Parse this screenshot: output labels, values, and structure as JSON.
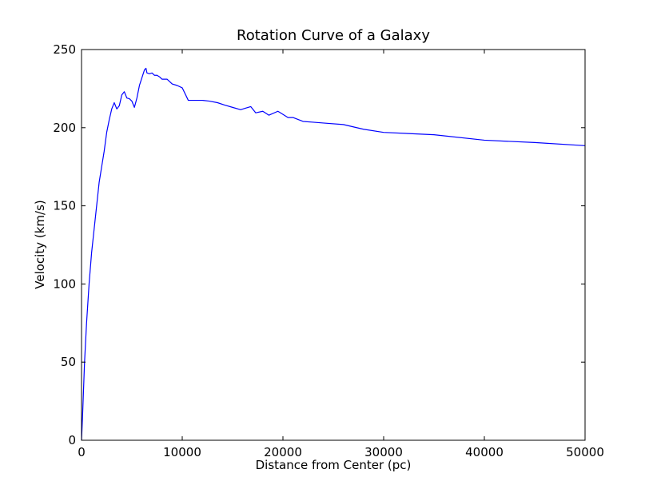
{
  "chart_data": {
    "type": "line",
    "title": "Rotation Curve of a Galaxy",
    "xlabel": "Distance from Center (pc)",
    "ylabel": "Velocity (km/s)",
    "xlim": [
      0,
      50000
    ],
    "ylim": [
      0,
      250
    ],
    "xticks": [
      0,
      10000,
      20000,
      30000,
      40000,
      50000
    ],
    "xtick_labels": [
      "0",
      "10000",
      "20000",
      "30000",
      "40000",
      "50000"
    ],
    "yticks": [
      0,
      50,
      100,
      150,
      200,
      250
    ],
    "ytick_labels": [
      "0",
      "50",
      "100",
      "150",
      "200",
      "250"
    ],
    "grid": false,
    "legend": false,
    "series": [
      {
        "color": "#0000ff",
        "x": [
          0,
          100,
          300,
          500,
          750,
          1000,
          1250,
          1500,
          1750,
          2000,
          2250,
          2500,
          2750,
          3000,
          3250,
          3500,
          3750,
          4000,
          4250,
          4500,
          4750,
          5000,
          5250,
          5500,
          5750,
          6000,
          6250,
          6400,
          6500,
          6750,
          7000,
          7250,
          7500,
          7750,
          8000,
          8500,
          9000,
          9500,
          10000,
          10600,
          11000,
          12000,
          12700,
          13500,
          14200,
          15000,
          15800,
          16300,
          16800,
          17300,
          18000,
          18600,
          19500,
          20000,
          20500,
          21000,
          22000,
          23000,
          24000,
          26000,
          28000,
          30000,
          35000,
          40000,
          45000,
          50000
        ],
        "y": [
          0,
          15,
          50,
          75,
          100,
          120,
          135,
          150,
          165,
          175,
          185,
          197,
          205,
          212,
          216,
          212,
          214,
          221,
          223,
          219,
          218.5,
          217,
          213,
          219,
          227,
          232,
          237,
          238,
          235,
          234.5,
          235,
          233.5,
          233.5,
          232.5,
          231,
          231,
          228,
          227,
          225.5,
          217.5,
          217.5,
          217.5,
          217,
          216,
          214.5,
          213,
          211.5,
          212.5,
          213.5,
          209.5,
          210.5,
          208,
          210.5,
          208.5,
          206.5,
          206.5,
          204,
          203.5,
          203,
          202,
          199,
          197,
          195.5,
          192,
          190.5,
          188.5
        ]
      }
    ]
  }
}
